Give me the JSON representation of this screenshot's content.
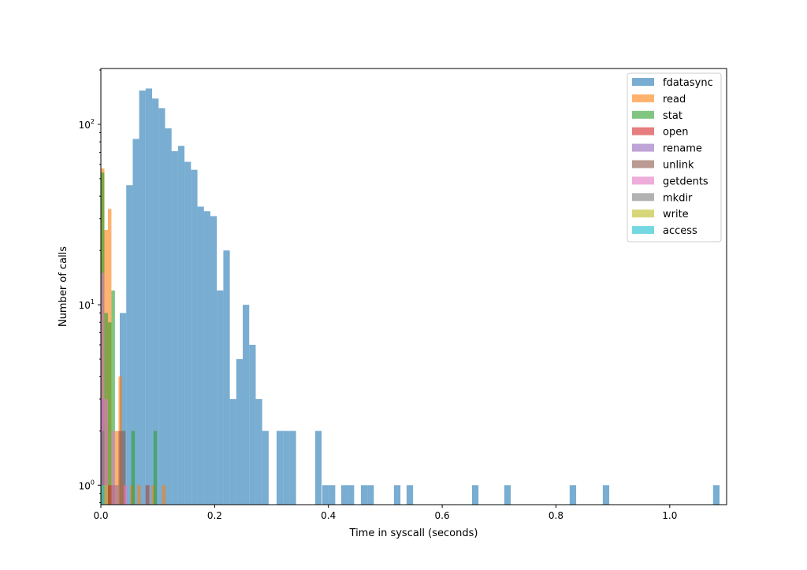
{
  "chart_data": {
    "type": "bar",
    "subtype": "histogram",
    "title": "",
    "xlabel": "Time in syscall (seconds)",
    "ylabel": "Number of calls",
    "xlim": [
      0,
      1.1
    ],
    "ylim": [
      0.78,
      204
    ],
    "yscale": "log",
    "grid": false,
    "legend_position": "upper-right",
    "bar_alpha": 0.6,
    "x_ticks": [
      "0.0",
      "0.2",
      "0.4",
      "0.6",
      "0.8",
      "1.0"
    ],
    "x_tick_values": [
      0,
      0.2,
      0.4,
      0.6,
      0.8,
      1.0
    ],
    "y_ticks": [
      {
        "value": 1,
        "base": "10",
        "exp": "0"
      },
      {
        "value": 10,
        "base": "10",
        "exp": "1"
      },
      {
        "value": 100,
        "base": "10",
        "exp": "2"
      }
    ],
    "series": [
      {
        "name": "fdatasync",
        "color": "#1f77b4",
        "bin_width": 0.01138,
        "bins": [
          [
            0.0332,
            9
          ],
          [
            0.0446,
            46
          ],
          [
            0.056,
            83
          ],
          [
            0.0673,
            154
          ],
          [
            0.0787,
            158
          ],
          [
            0.0901,
            139
          ],
          [
            0.1015,
            123
          ],
          [
            0.1129,
            95
          ],
          [
            0.1242,
            71
          ],
          [
            0.1356,
            76
          ],
          [
            0.147,
            62
          ],
          [
            0.1584,
            56
          ],
          [
            0.1698,
            35
          ],
          [
            0.1811,
            33
          ],
          [
            0.1925,
            31
          ],
          [
            0.2039,
            12
          ],
          [
            0.2153,
            20
          ],
          [
            0.2267,
            3
          ],
          [
            0.238,
            5
          ],
          [
            0.2494,
            10
          ],
          [
            0.2608,
            6
          ],
          [
            0.2722,
            3
          ],
          [
            0.2836,
            2
          ],
          [
            0.3089,
            2
          ],
          [
            0.3203,
            2
          ],
          [
            0.3317,
            2
          ],
          [
            0.3767,
            2
          ],
          [
            0.3892,
            1
          ],
          [
            0.4006,
            1
          ],
          [
            0.4224,
            1
          ],
          [
            0.4338,
            1
          ],
          [
            0.4571,
            1
          ],
          [
            0.4685,
            1
          ],
          [
            0.5152,
            1
          ],
          [
            0.5374,
            1
          ],
          [
            0.6524,
            1
          ],
          [
            0.7091,
            1
          ],
          [
            0.8241,
            1
          ],
          [
            0.8823,
            1
          ],
          [
            1.0762,
            1
          ]
        ]
      },
      {
        "name": "read",
        "color": "#ff7f0e",
        "bin_width": 0.0062,
        "bins": [
          [
            0,
            57
          ],
          [
            0.0062,
            26
          ],
          [
            0.0124,
            34
          ],
          [
            0.0186,
            1
          ],
          [
            0.0248,
            2
          ],
          [
            0.031,
            4
          ],
          [
            0.0372,
            1
          ],
          [
            0.0515,
            1
          ],
          [
            0.064,
            1
          ],
          [
            0.089,
            1
          ],
          [
            0.1075,
            1
          ]
        ]
      },
      {
        "name": "stat",
        "color": "#2ca02c",
        "bin_width": 0.0062,
        "bins": [
          [
            0,
            54
          ],
          [
            0.0062,
            9
          ],
          [
            0.0124,
            8
          ],
          [
            0.0186,
            12
          ],
          [
            0.0248,
            1
          ],
          [
            0.0535,
            2
          ],
          [
            0.0925,
            2
          ]
        ]
      },
      {
        "name": "open",
        "color": "#d62728",
        "bin_width": 0.0062,
        "bins": [
          [
            0,
            2
          ],
          [
            0.0124,
            1
          ],
          [
            0.079,
            1
          ]
        ]
      },
      {
        "name": "rename",
        "color": "#9467bd",
        "bin_width": 0.0062,
        "bins": [
          [
            0,
            3
          ],
          [
            0.0062,
            1
          ]
        ]
      },
      {
        "name": "unlink",
        "color": "#8c564b",
        "bin_width": 0.0062,
        "bins": [
          [
            0.0186,
            1
          ],
          [
            0.031,
            2
          ],
          [
            0.0372,
            2
          ]
        ]
      },
      {
        "name": "getdents",
        "color": "#e377c2",
        "bin_width": 0.0062,
        "bins": [
          [
            0,
            15
          ],
          [
            0.0062,
            3
          ],
          [
            0.0186,
            2
          ],
          [
            0.0248,
            1
          ],
          [
            0.04,
            1
          ]
        ]
      },
      {
        "name": "mkdir",
        "color": "#7f7f7f",
        "bin_width": 0.0062,
        "bins": [
          [
            0,
            2
          ],
          [
            0.078,
            1
          ]
        ]
      },
      {
        "name": "write",
        "color": "#bcbd22",
        "bin_width": 0.0062,
        "bins": [
          [
            0,
            1
          ],
          [
            0.0062,
            1
          ]
        ]
      },
      {
        "name": "access",
        "color": "#17becf",
        "bin_width": 0.0062,
        "bins": [
          [
            0,
            1
          ]
        ]
      }
    ]
  }
}
